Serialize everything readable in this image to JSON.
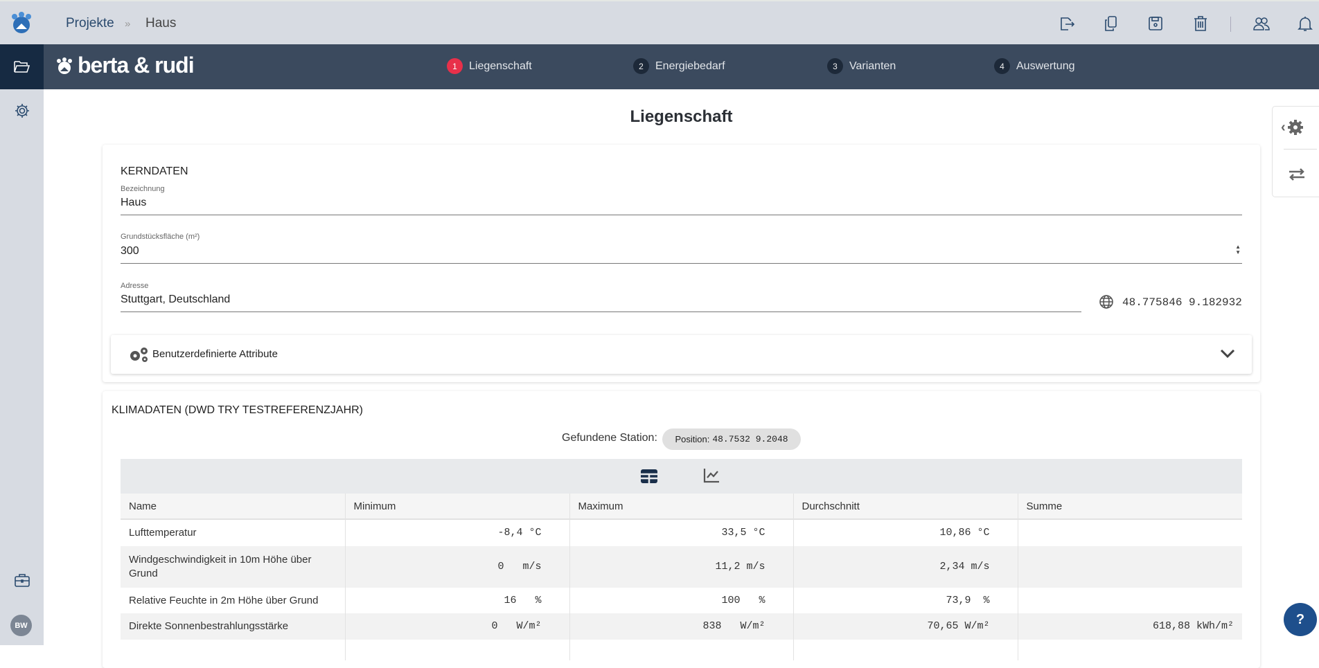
{
  "topbar": {
    "breadcrumb": {
      "root": "Projekte",
      "separator": "»",
      "current": "Haus"
    },
    "icons": [
      "export-icon",
      "copy-icon",
      "save-icon",
      "trash-icon",
      "users-icon",
      "bell-icon"
    ]
  },
  "brand": {
    "name": "berta & rudi"
  },
  "steps": [
    {
      "num": "1",
      "label": "Liegenschaft",
      "active": true
    },
    {
      "num": "2",
      "label": "Energiebedarf"
    },
    {
      "num": "3",
      "label": "Varianten"
    },
    {
      "num": "4",
      "label": "Auswertung"
    }
  ],
  "sidebar": {
    "avatar": "BW"
  },
  "page": {
    "title": "Liegenschaft"
  },
  "kerndaten": {
    "title": "KERNDATEN",
    "bezeichnung": {
      "label": "Bezeichnung",
      "value": "Haus"
    },
    "flaeche": {
      "label": "Grundstücksfläche (m²)",
      "value": "300"
    },
    "adresse": {
      "label": "Adresse",
      "value": "Stuttgart, Deutschland",
      "coords": "48.775846 9.182932"
    },
    "custom_attributes": "Benutzerdefinierte Attribute"
  },
  "klima": {
    "title": "KLIMADATEN (DWD TRY TESTREFERENZJAHR)",
    "station_label": "Gefundene Station:",
    "position_label": "Position:",
    "position_value": "48.7532 9.2048",
    "columns": [
      "Name",
      "Minimum",
      "Maximum",
      "Durchschnitt",
      "Summe"
    ],
    "rows": [
      {
        "name": "Lufttemperatur",
        "min": "-8,4 °C",
        "max": "33,5 °C",
        "avg": "10,86 °C",
        "sum": ""
      },
      {
        "name": "Windgeschwindigkeit in 10m Höhe über Grund",
        "min": "0   m/s",
        "max": "11,2 m/s",
        "avg": "2,34 m/s",
        "sum": ""
      },
      {
        "name": "Relative Feuchte in 2m Höhe über Grund",
        "min": "16   %",
        "max": "100   %",
        "avg": "73,9  %",
        "sum": ""
      },
      {
        "name": "Direkte Sonnenbestrahlungsstärke",
        "min": "0   W/m²",
        "max": "838   W/m²",
        "avg": "70,65 W/m²",
        "sum": "618,88 kWh/m²"
      },
      {
        "name": "",
        "min": "",
        "max": "",
        "avg": "",
        "sum": ""
      }
    ]
  },
  "help": {
    "label": "?"
  },
  "colors": {
    "accent": "#e8304a",
    "nav": "#3b4a5e",
    "topbar": "#d7dbe2",
    "primary": "#1e4f8c"
  }
}
